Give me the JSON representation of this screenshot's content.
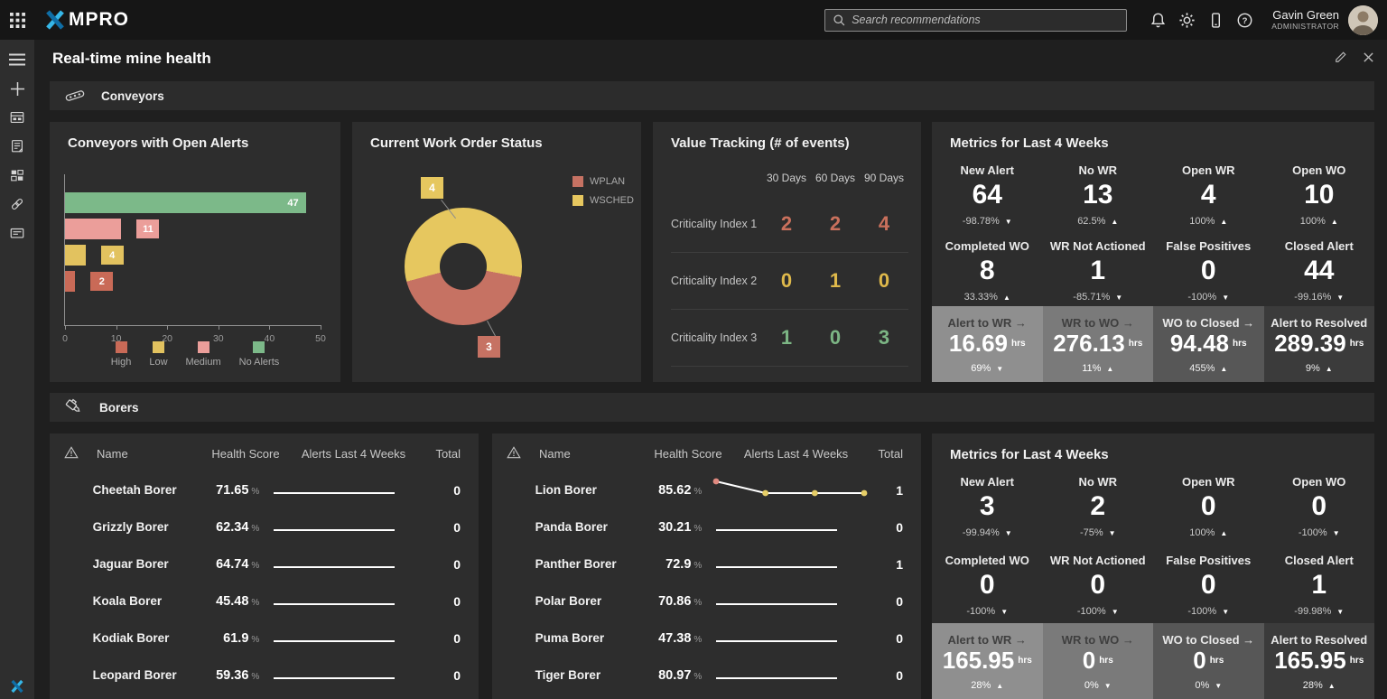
{
  "app": {
    "logo_x": "X",
    "logo_rest": "MPRO",
    "search_placeholder": "Search recommendations",
    "user_name": "Gavin Green",
    "user_role": "ADMINISTRATOR"
  },
  "page": {
    "title": "Real-time mine health"
  },
  "sections": {
    "conveyors": "Conveyors",
    "borers": "Borers"
  },
  "chart_data": [
    {
      "type": "bar",
      "title": "Conveyors with Open Alerts",
      "orientation": "horizontal",
      "categories": [
        "No Alerts",
        "Medium",
        "Low",
        "High"
      ],
      "values": [
        47,
        11,
        4,
        2
      ],
      "colors": [
        "#7cb989",
        "#eb9e9a",
        "#e2c25f",
        "#c96a57"
      ],
      "xlim": [
        0,
        50
      ],
      "xticks": [
        0,
        10,
        20,
        30,
        40,
        50
      ],
      "legend": [
        {
          "label": "High",
          "color": "#c96a57"
        },
        {
          "label": "Low",
          "color": "#e2c25f"
        },
        {
          "label": "Medium",
          "color": "#eb9e9a"
        },
        {
          "label": "No Alerts",
          "color": "#7cb989"
        }
      ],
      "legend_position": "bottom"
    },
    {
      "type": "pie",
      "title": "Current Work Order Status",
      "donut": true,
      "start_angle": -105,
      "slices": [
        {
          "label": "WSCHED",
          "value": 4,
          "color": "#e6c75f"
        },
        {
          "label": "WPLAN",
          "value": 3,
          "color": "#c67263"
        }
      ],
      "legend": [
        {
          "label": "WPLAN",
          "color": "#c67263"
        },
        {
          "label": "WSCHED",
          "color": "#e6c75f"
        }
      ],
      "legend_position": "top-right"
    },
    {
      "type": "table",
      "title": "Value Tracking (# of events)",
      "columns": [
        "30 Days",
        "60 Days",
        "90 Days"
      ],
      "rows": [
        {
          "label": "Criticality Index 1",
          "values": [
            2,
            2,
            4
          ],
          "color": "#c9705c"
        },
        {
          "label": "Criticality Index 2",
          "values": [
            0,
            1,
            0
          ],
          "color": "#dfb94b"
        },
        {
          "label": "Criticality Index 3",
          "values": [
            1,
            0,
            3
          ],
          "color": "#7cb584"
        }
      ]
    }
  ],
  "metrics": [
    {
      "title": "Metrics for Last 4 Weeks",
      "cells": [
        {
          "label": "New Alert",
          "value": "64",
          "pct": "-98.78%",
          "dir": "down"
        },
        {
          "label": "No WR",
          "value": "13",
          "pct": "62.5%",
          "dir": "up"
        },
        {
          "label": "Open WR",
          "value": "4",
          "pct": "100%",
          "dir": "up"
        },
        {
          "label": "Open WO",
          "value": "10",
          "pct": "100%",
          "dir": "up"
        },
        {
          "label": "Completed WO",
          "value": "8",
          "pct": "33.33%",
          "dir": "up"
        },
        {
          "label": "WR Not Actioned",
          "value": "1",
          "pct": "-85.71%",
          "dir": "down"
        },
        {
          "label": "False Positives",
          "value": "0",
          "pct": "-100%",
          "dir": "down"
        },
        {
          "label": "Closed Alert",
          "value": "44",
          "pct": "-99.16%",
          "dir": "down"
        }
      ],
      "stages": [
        {
          "label": "Alert to WR →",
          "value": "16.69",
          "unit": "hrs",
          "pct": "69%",
          "dir": "down",
          "bg": "#8f8f8f",
          "dark_label": true
        },
        {
          "label": "WR to WO →",
          "value": "276.13",
          "unit": "hrs",
          "pct": "11%",
          "dir": "up",
          "bg": "#7a7a7a",
          "dark_label": true
        },
        {
          "label": "WO to Closed →",
          "value": "94.48",
          "unit": "hrs",
          "pct": "455%",
          "dir": "up",
          "bg": "#575757",
          "dark_label": false
        },
        {
          "label": "Alert to Resolved",
          "value": "289.39",
          "unit": "hrs",
          "pct": "9%",
          "dir": "up",
          "bg": "#3b3b3b",
          "dark_label": false
        }
      ]
    },
    {
      "title": "Metrics for Last 4 Weeks",
      "cells": [
        {
          "label": "New Alert",
          "value": "3",
          "pct": "-99.94%",
          "dir": "down"
        },
        {
          "label": "No WR",
          "value": "2",
          "pct": "-75%",
          "dir": "down"
        },
        {
          "label": "Open WR",
          "value": "0",
          "pct": "100%",
          "dir": "up"
        },
        {
          "label": "Open WO",
          "value": "0",
          "pct": "-100%",
          "dir": "down"
        },
        {
          "label": "Completed WO",
          "value": "0",
          "pct": "-100%",
          "dir": "down"
        },
        {
          "label": "WR Not Actioned",
          "value": "0",
          "pct": "-100%",
          "dir": "down"
        },
        {
          "label": "False Positives",
          "value": "0",
          "pct": "-100%",
          "dir": "down"
        },
        {
          "label": "Closed Alert",
          "value": "1",
          "pct": "-99.98%",
          "dir": "down"
        }
      ],
      "stages": [
        {
          "label": "Alert to WR →",
          "value": "165.95",
          "unit": "hrs",
          "pct": "28%",
          "dir": "up",
          "bg": "#8f8f8f",
          "dark_label": true
        },
        {
          "label": "WR to WO →",
          "value": "0",
          "unit": "hrs",
          "pct": "0%",
          "dir": "down",
          "bg": "#7a7a7a",
          "dark_label": true
        },
        {
          "label": "WO to Closed →",
          "value": "0",
          "unit": "hrs",
          "pct": "0%",
          "dir": "down",
          "bg": "#575757",
          "dark_label": false
        },
        {
          "label": "Alert to Resolved",
          "value": "165.95",
          "unit": "hrs",
          "pct": "28%",
          "dir": "up",
          "bg": "#3b3b3b",
          "dark_label": false
        }
      ]
    }
  ],
  "tables": {
    "headers": {
      "name": "Name",
      "score": "Health Score",
      "spark": "Alerts Last 4 Weeks",
      "total": "Total"
    },
    "percent_unit": "%",
    "groups": [
      {
        "rows": [
          {
            "name": "Cheetah Borer",
            "score": "71.65",
            "status_color": "#83b98c",
            "spark": [
              0,
              0,
              0,
              0
            ],
            "total": "0"
          },
          {
            "name": "Grizzly Borer",
            "score": "62.34",
            "status_color": "#83b98c",
            "spark": [
              0,
              0,
              0,
              0
            ],
            "total": "0"
          },
          {
            "name": "Jaguar Borer",
            "score": "64.74",
            "status_color": "#83b98c",
            "spark": [
              0,
              0,
              0,
              0
            ],
            "total": "0"
          },
          {
            "name": "Koala Borer",
            "score": "45.48",
            "status_color": "#83b98c",
            "spark": [
              0,
              0,
              0,
              0
            ],
            "total": "0"
          },
          {
            "name": "Kodiak Borer",
            "score": "61.9",
            "status_color": "#83b98c",
            "spark": [
              0,
              0,
              0,
              0
            ],
            "total": "0"
          },
          {
            "name": "Leopard Borer",
            "score": "59.36",
            "status_color": "#83b98c",
            "spark": [
              0,
              0,
              0,
              0
            ],
            "total": "0"
          }
        ]
      },
      {
        "rows": [
          {
            "name": "Lion Borer",
            "score": "85.62",
            "status_color": "#e3c364",
            "spark": [
              1,
              0,
              0,
              0
            ],
            "spark_dot_colors": [
              "#e08a80",
              "#e6ce67",
              "#e6ce67",
              "#e6ce67"
            ],
            "total": "1"
          },
          {
            "name": "Panda Borer",
            "score": "30.21",
            "status_color": "#83b98c",
            "spark": [
              0,
              0,
              0,
              0
            ],
            "total": "0"
          },
          {
            "name": "Panther Borer",
            "score": "72.9",
            "status_color": "#ef9f9f",
            "spark": [
              0,
              0,
              0,
              0
            ],
            "total": "1"
          },
          {
            "name": "Polar Borer",
            "score": "70.86",
            "status_color": "#83b98c",
            "spark": [
              0,
              0,
              0,
              0
            ],
            "total": "0"
          },
          {
            "name": "Puma Borer",
            "score": "47.38",
            "status_color": "#83b98c",
            "spark": [
              0,
              0,
              0,
              0
            ],
            "total": "0"
          },
          {
            "name": "Tiger Borer",
            "score": "80.97",
            "status_color": "#83b98c",
            "spark": [
              0,
              0,
              0,
              0
            ],
            "total": "0"
          }
        ]
      }
    ]
  }
}
